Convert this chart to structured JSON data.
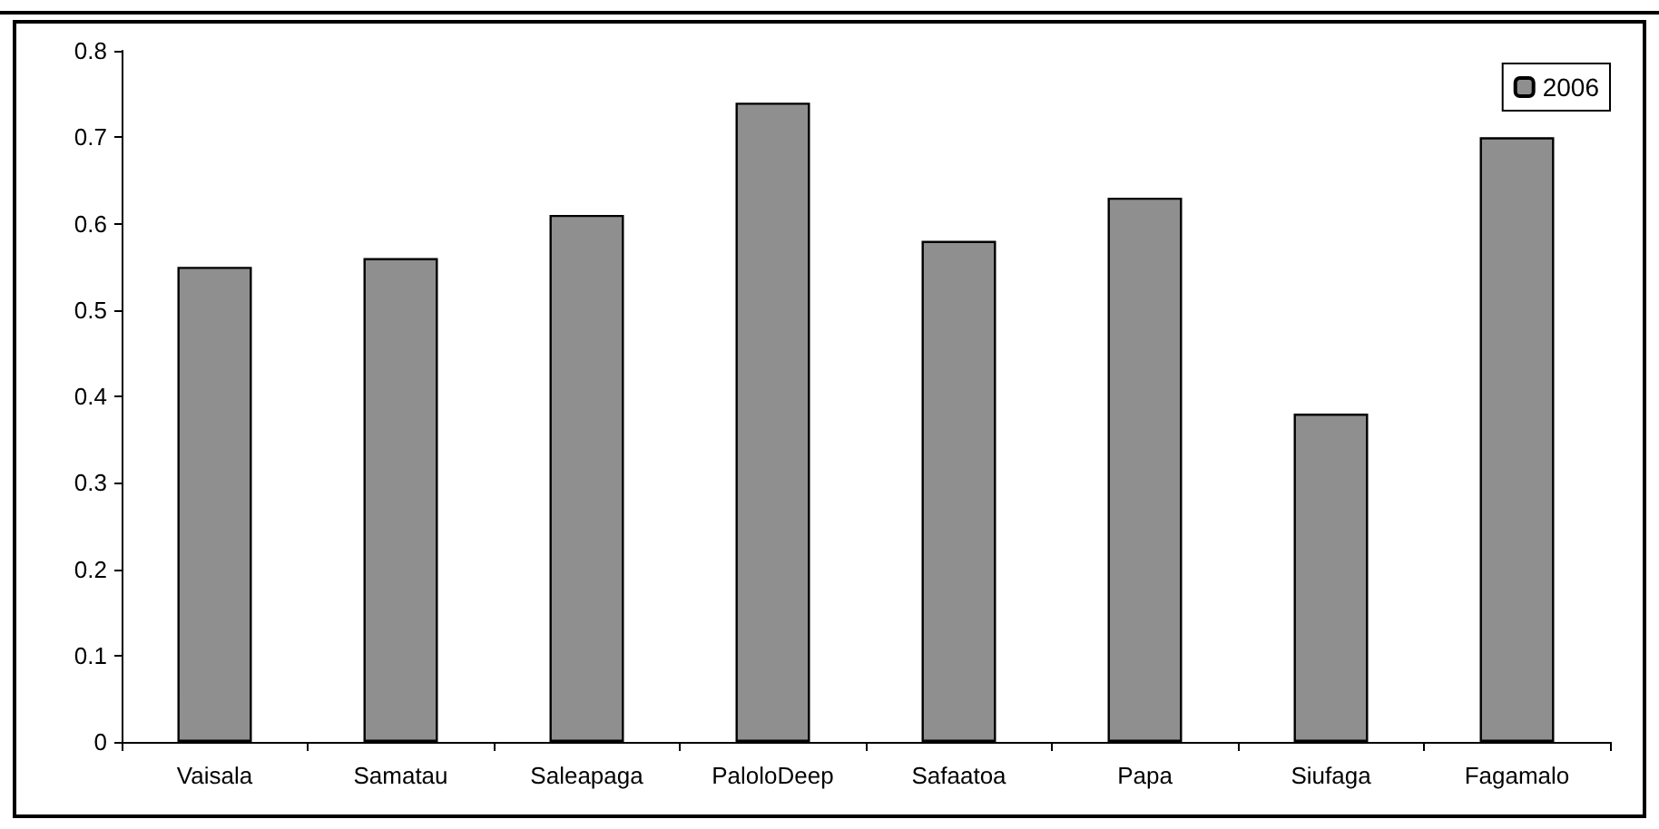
{
  "chart_data": {
    "type": "bar",
    "categories": [
      "Vaisala",
      "Samatau",
      "Saleapaga",
      "PaloloDeep",
      "Safaatoa",
      "Papa",
      "Siufaga",
      "Fagamalo"
    ],
    "series": [
      {
        "name": "2006",
        "color": "#8f8f8f",
        "values": [
          0.55,
          0.56,
          0.61,
          0.74,
          0.58,
          0.63,
          0.38,
          0.7
        ]
      }
    ],
    "ylim": [
      0,
      0.8
    ],
    "yticks": [
      0,
      0.1,
      0.2,
      0.3,
      0.4,
      0.5,
      0.6,
      0.7,
      0.8
    ],
    "grid": false,
    "legend": "top right"
  }
}
